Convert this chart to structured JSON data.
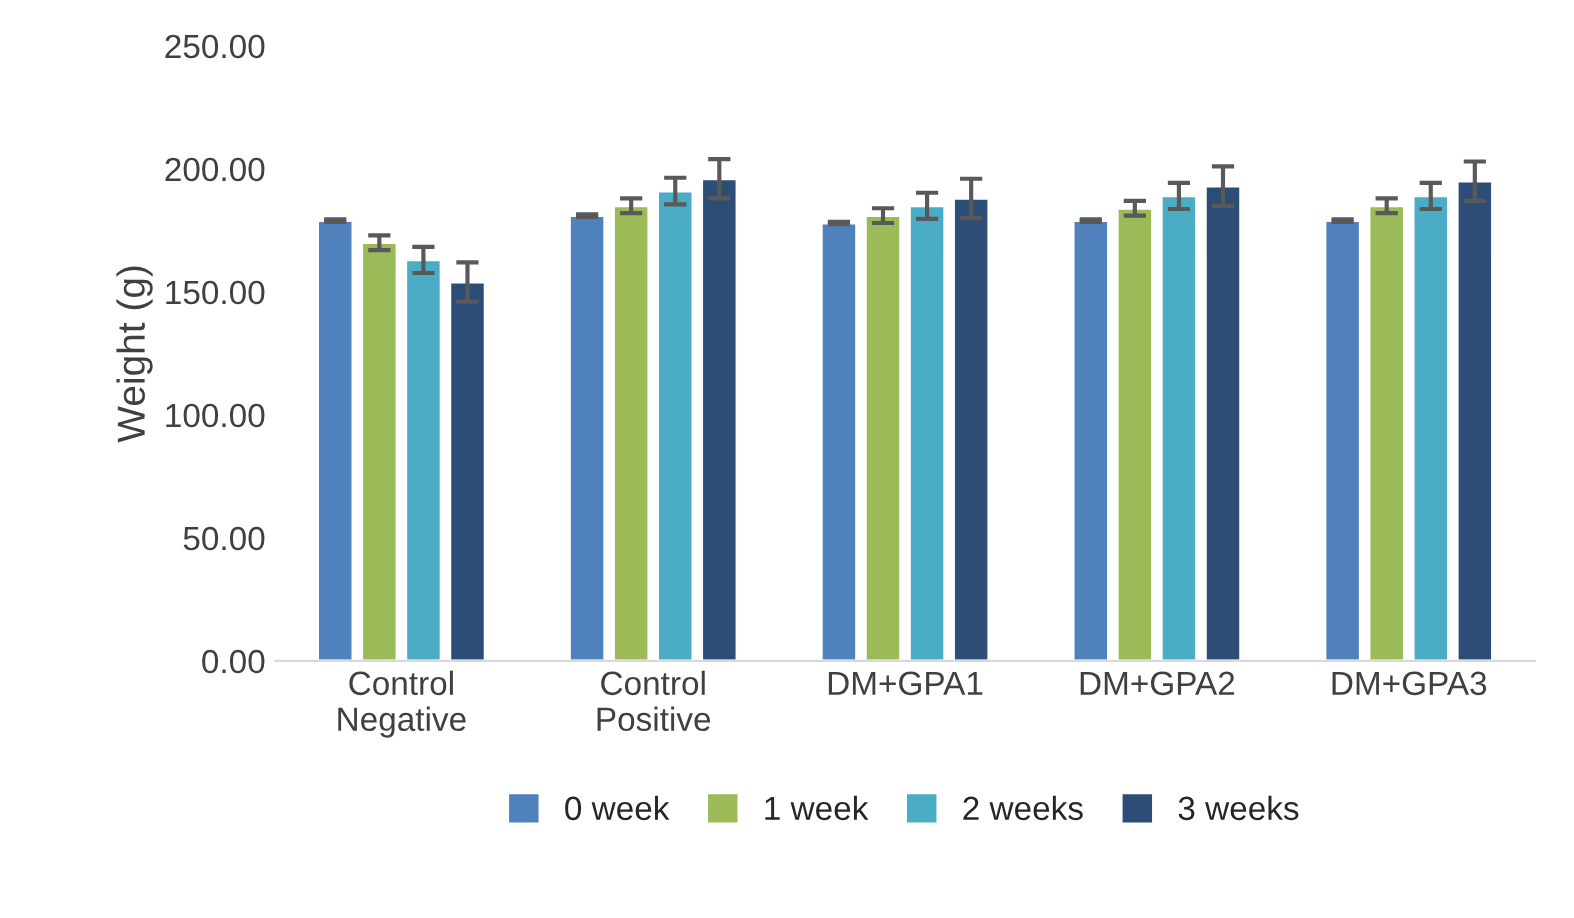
{
  "chart_data": {
    "type": "bar",
    "ylabel": "Weight (g)",
    "categories": [
      "Control\nNegative",
      "Control\nPositive",
      "DM+GPA1",
      "DM+GPA2",
      "DM+GPA3"
    ],
    "series": [
      {
        "name": "0 week",
        "color": "#4f81bd",
        "values": [
          179,
          181,
          178,
          179,
          179
        ],
        "errors": [
          0.5,
          0.5,
          0.5,
          0.5,
          0.5
        ]
      },
      {
        "name": "1 week",
        "color": "#9bbb59",
        "values": [
          170,
          185,
          181,
          184,
          185
        ],
        "errors": [
          3,
          3,
          3,
          3,
          3
        ]
      },
      {
        "name": "2 weeks",
        "color": "#4bacc6",
        "values": [
          163,
          191,
          185,
          189,
          189
        ],
        "errors": [
          5.3,
          5.4,
          5.3,
          5.3,
          5.3
        ]
      },
      {
        "name": "3 weeks",
        "color": "#2c4d75",
        "values": [
          154,
          196,
          188,
          193,
          195
        ],
        "errors": [
          8,
          8,
          8,
          8,
          8
        ]
      }
    ],
    "ylim": [
      0,
      250
    ],
    "yticks": [
      {
        "value": 0,
        "label": "0.00"
      },
      {
        "value": 50,
        "label": "50.00"
      },
      {
        "value": 100,
        "label": "100.00"
      },
      {
        "value": 150,
        "label": "150.00"
      },
      {
        "value": 200,
        "label": "200.00"
      },
      {
        "value": 250,
        "label": "250.00"
      }
    ],
    "grid": false,
    "legend": "bottom"
  }
}
